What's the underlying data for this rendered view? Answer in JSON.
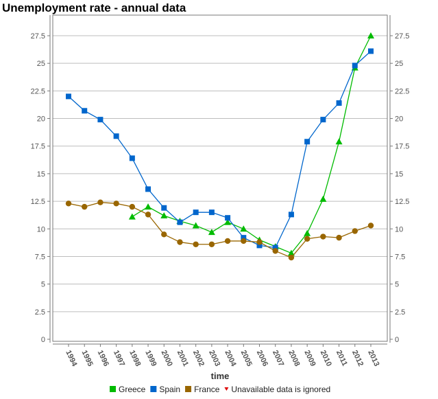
{
  "chart_data": {
    "type": "line",
    "title": "Unemployment rate - annual data",
    "xlabel": "time",
    "ylabel": "",
    "ylim": [
      0,
      27.5
    ],
    "yticks": [
      "0",
      "2.5",
      "5",
      "7.5",
      "10",
      "12.5",
      "15",
      "17.5",
      "20",
      "22.5",
      "25",
      "27.5"
    ],
    "ytick_values": [
      0,
      2.5,
      5,
      7.5,
      10,
      12.5,
      15,
      17.5,
      20,
      22.5,
      25,
      27.5
    ],
    "grid": true,
    "legend_position": "bottom",
    "categories": [
      "1994",
      "1995",
      "1996",
      "1997",
      "1998",
      "1999",
      "2000",
      "2001",
      "2002",
      "2003",
      "2004",
      "2005",
      "2006",
      "2007",
      "2008",
      "2009",
      "2010",
      "2011",
      "2012",
      "2013"
    ],
    "series": [
      {
        "name": "Greece",
        "color": "#00bb00",
        "marker": "triangle",
        "values": [
          null,
          null,
          null,
          null,
          11.1,
          12.0,
          11.2,
          10.7,
          10.3,
          9.7,
          10.6,
          10.0,
          9.0,
          8.4,
          7.8,
          9.6,
          12.7,
          17.9,
          24.6,
          27.5
        ]
      },
      {
        "name": "Spain",
        "color": "#0066cc",
        "marker": "square",
        "values": [
          22.0,
          20.7,
          19.9,
          18.4,
          16.4,
          13.6,
          11.9,
          10.6,
          11.5,
          11.5,
          11.0,
          9.2,
          8.5,
          8.3,
          11.3,
          17.9,
          19.9,
          21.4,
          24.8,
          26.1
        ]
      },
      {
        "name": "France",
        "color": "#996600",
        "marker": "circle",
        "values": [
          12.3,
          12.0,
          12.4,
          12.3,
          12.0,
          11.3,
          9.5,
          8.8,
          8.6,
          8.6,
          8.9,
          8.9,
          8.8,
          8.0,
          7.4,
          9.1,
          9.3,
          9.2,
          9.8,
          10.3
        ]
      }
    ],
    "legend_note": "Unavailable data is ignored",
    "legend_note_color": "#dd0000"
  }
}
